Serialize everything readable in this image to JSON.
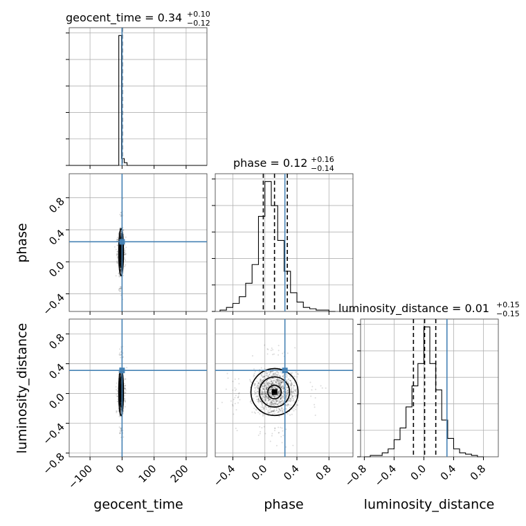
{
  "chart_data": {
    "type": "corner",
    "parameters": [
      "geocent_time",
      "phase",
      "luminosity_distance"
    ],
    "colors": {
      "truth": "#4682b4",
      "samples": "#000000",
      "grid": "#b0b0b0"
    },
    "grid": true,
    "ranges": {
      "geocent_time": [
        -165,
        265
      ],
      "phase": [
        -0.62,
        1.1
      ],
      "luminosity_distance": [
        -0.85,
        1.0
      ]
    },
    "ticks": {
      "geocent_time": {
        "values": [
          -100,
          0,
          100,
          200
        ],
        "labels": [
          "−100",
          "0",
          "100",
          "200"
        ]
      },
      "phase": {
        "values": [
          -0.4,
          0.0,
          0.4,
          0.8
        ],
        "labels": [
          "−0.4",
          "0.0",
          "0.4",
          "0.8"
        ]
      },
      "luminosity_distance": {
        "values": [
          -0.8,
          -0.4,
          0.0,
          0.4,
          0.8
        ],
        "labels": [
          "−0.8",
          "−0.4",
          "0.0",
          "0.4",
          "0.8"
        ]
      }
    },
    "truths": {
      "geocent_time": 0.0,
      "phase": 0.25,
      "luminosity_distance": 0.31
    },
    "titles": [
      {
        "param": "geocent_time",
        "label": "geocent_time = 0.34",
        "plus": "+0.10",
        "minus": "−0.12"
      },
      {
        "param": "phase",
        "label": "phase = 0.12",
        "plus": "+0.16",
        "minus": "−0.14"
      },
      {
        "param": "luminosity_distance",
        "label": "luminosity_distance = 0.01",
        "plus": "+0.15",
        "minus": "−0.15"
      }
    ],
    "quantiles": {
      "geocent_time": [
        0.22,
        0.34,
        0.44
      ],
      "phase": [
        -0.02,
        0.12,
        0.28
      ],
      "luminosity_distance": [
        -0.14,
        0.01,
        0.16
      ]
    },
    "histograms": {
      "geocent_time": {
        "bins": [
          -165,
          -156.4,
          -147.8,
          -139.2,
          -130.6,
          -122,
          -113.4,
          -104.8,
          -96.2,
          -87.6,
          -79,
          -70.4,
          -61.8,
          -53.2,
          -44.6,
          -36,
          -27.4,
          -18.8,
          -10.2,
          -1.6,
          7,
          15.6,
          24.2,
          32.8,
          41.4,
          50,
          58.6,
          67.2,
          75.8,
          84.4,
          93,
          101.6,
          110.2,
          118.8,
          127.4,
          136,
          144.6,
          153.2,
          161.8,
          170.4,
          179,
          187.6,
          196.2,
          204.8,
          213.4,
          222,
          230.6,
          239.2,
          247.8,
          256.4,
          265
        ],
        "counts": [
          0,
          0,
          0,
          0,
          0,
          0,
          0,
          0,
          0,
          0,
          0,
          0,
          0,
          0,
          0,
          0,
          0,
          0,
          0.95,
          0.05,
          0.02,
          0,
          0,
          0,
          0,
          0,
          0,
          0,
          0,
          0,
          0,
          0,
          0,
          0,
          0,
          0,
          0,
          0,
          0,
          0,
          0,
          0,
          0,
          0,
          0,
          0,
          0,
          0,
          0,
          0
        ]
      },
      "phase": {
        "bins": [
          -0.56,
          -0.48,
          -0.4,
          -0.32,
          -0.24,
          -0.16,
          -0.08,
          0.0,
          0.08,
          0.16,
          0.24,
          0.32,
          0.4,
          0.48,
          0.56,
          0.64,
          0.72,
          0.8,
          0.88
        ],
        "counts": [
          0.01,
          0.03,
          0.06,
          0.11,
          0.21,
          0.35,
          0.71,
          0.97,
          0.79,
          0.53,
          0.3,
          0.14,
          0.07,
          0.03,
          0.02,
          0.01,
          0.01,
          0.0
        ]
      },
      "luminosity_distance": {
        "bins": [
          -0.8,
          -0.72,
          -0.64,
          -0.56,
          -0.48,
          -0.4,
          -0.32,
          -0.24,
          -0.16,
          -0.08,
          0.0,
          0.08,
          0.16,
          0.24,
          0.32,
          0.4,
          0.48,
          0.56,
          0.64,
          0.72,
          0.8
        ],
        "counts": [
          0.0,
          0.01,
          0.01,
          0.03,
          0.06,
          0.13,
          0.22,
          0.38,
          0.54,
          0.71,
          0.99,
          0.71,
          0.51,
          0.28,
          0.14,
          0.06,
          0.03,
          0.02,
          0.01,
          0.0
        ]
      }
    },
    "posterior_2d": {
      "phase_vs_geocent_time": {
        "center": [
          -3,
          0.12
        ],
        "sd": [
          3.5,
          0.14
        ],
        "corr": 0.0
      },
      "luminosity_distance_vs_geocent_time": {
        "center": [
          -3,
          0.02
        ],
        "sd": [
          3.5,
          0.15
        ],
        "corr": 0.0
      },
      "luminosity_distance_vs_phase": {
        "center": [
          0.12,
          0.02
        ],
        "sd": [
          0.14,
          0.15
        ],
        "corr": 0.0
      }
    }
  }
}
